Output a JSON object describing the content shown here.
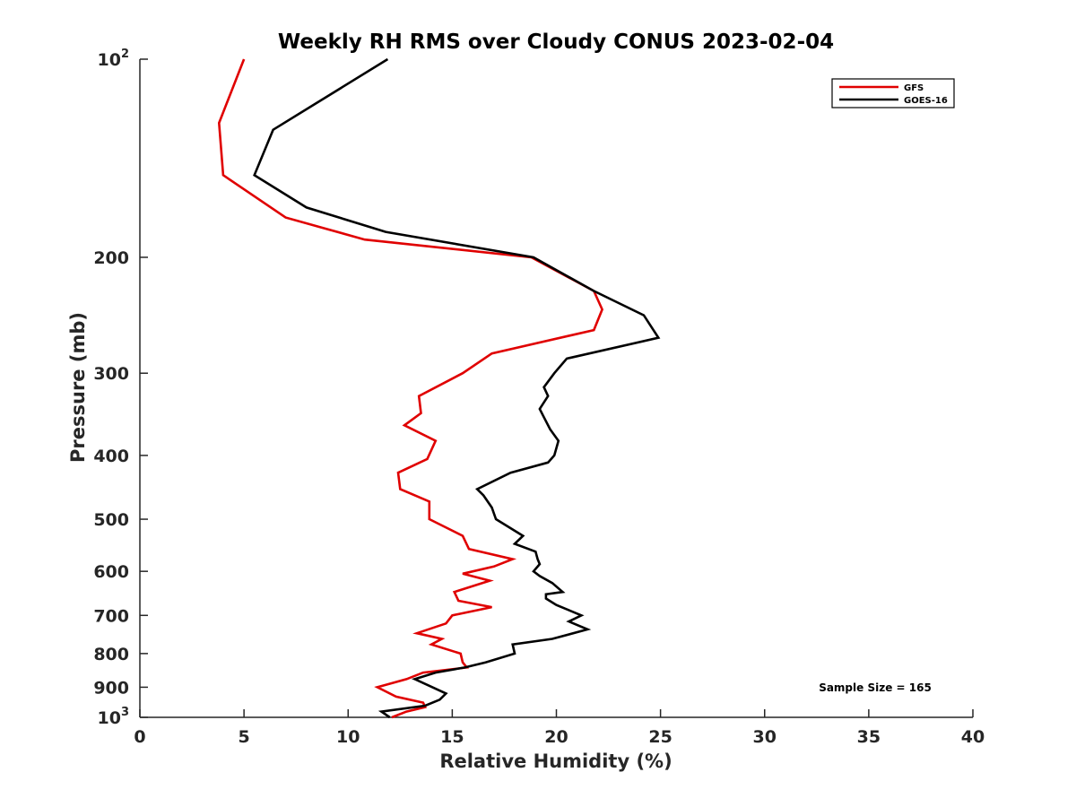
{
  "chart_data": {
    "type": "line",
    "title": "Weekly RH RMS over Cloudy CONUS 2023-02-04",
    "xlabel": "Relative Humidity (%)",
    "ylabel": "Pressure (mb)",
    "xlim": [
      0,
      40
    ],
    "ylim": [
      100,
      1000
    ],
    "yscale": "log",
    "yreversed": true,
    "x_ticks": [
      "0",
      "5",
      "10",
      "15",
      "20",
      "25",
      "30",
      "35",
      "40"
    ],
    "y_ticks": [
      {
        "value": 100,
        "base": "10",
        "exp": "2"
      },
      {
        "value": 200,
        "base": "200",
        "exp": ""
      },
      {
        "value": 300,
        "base": "300",
        "exp": ""
      },
      {
        "value": 400,
        "base": "400",
        "exp": ""
      },
      {
        "value": 500,
        "base": "500",
        "exp": ""
      },
      {
        "value": 600,
        "base": "600",
        "exp": ""
      },
      {
        "value": 700,
        "base": "700",
        "exp": ""
      },
      {
        "value": 800,
        "base": "800",
        "exp": ""
      },
      {
        "value": 900,
        "base": "900",
        "exp": ""
      },
      {
        "value": 1000,
        "base": "10",
        "exp": "3"
      }
    ],
    "grid": false,
    "legend_position": "top-right",
    "annotation": "Sample Size = 165",
    "series": [
      {
        "name": "GFS",
        "color": "#e00000",
        "points": [
          [
            5.0,
            100
          ],
          [
            3.8,
            125
          ],
          [
            4.0,
            150
          ],
          [
            7.0,
            174
          ],
          [
            10.8,
            188
          ],
          [
            18.8,
            200
          ],
          [
            21.8,
            225
          ],
          [
            22.2,
            240
          ],
          [
            21.8,
            258
          ],
          [
            16.9,
            280
          ],
          [
            15.5,
            300
          ],
          [
            13.4,
            325
          ],
          [
            13.5,
            345
          ],
          [
            12.7,
            360
          ],
          [
            14.2,
            380
          ],
          [
            13.8,
            405
          ],
          [
            12.4,
            425
          ],
          [
            12.5,
            450
          ],
          [
            13.9,
            470
          ],
          [
            13.9,
            500
          ],
          [
            15.5,
            530
          ],
          [
            15.8,
            555
          ],
          [
            17.9,
            575
          ],
          [
            17.0,
            590
          ],
          [
            15.5,
            605
          ],
          [
            16.8,
            620
          ],
          [
            15.1,
            645
          ],
          [
            15.3,
            665
          ],
          [
            16.9,
            680
          ],
          [
            15.0,
            700
          ],
          [
            14.7,
            720
          ],
          [
            13.3,
            745
          ],
          [
            14.5,
            760
          ],
          [
            14.0,
            775
          ],
          [
            15.4,
            800
          ],
          [
            15.5,
            825
          ],
          [
            15.7,
            840
          ],
          [
            13.6,
            855
          ],
          [
            12.8,
            875
          ],
          [
            11.4,
            900
          ],
          [
            12.3,
            930
          ],
          [
            13.6,
            950
          ],
          [
            13.7,
            965
          ],
          [
            12.8,
            980
          ],
          [
            12.1,
            1000
          ]
        ]
      },
      {
        "name": "GOES-16",
        "color": "#000000",
        "points": [
          [
            11.9,
            100
          ],
          [
            6.4,
            128
          ],
          [
            5.5,
            150
          ],
          [
            8.0,
            168
          ],
          [
            11.8,
            183
          ],
          [
            18.9,
            200
          ],
          [
            21.8,
            225
          ],
          [
            24.2,
            245
          ],
          [
            24.9,
            265
          ],
          [
            20.5,
            285
          ],
          [
            19.9,
            300
          ],
          [
            19.4,
            315
          ],
          [
            19.6,
            325
          ],
          [
            19.2,
            340
          ],
          [
            19.4,
            350
          ],
          [
            19.7,
            365
          ],
          [
            20.1,
            380
          ],
          [
            19.9,
            400
          ],
          [
            19.6,
            410
          ],
          [
            17.8,
            425
          ],
          [
            16.2,
            450
          ],
          [
            16.5,
            460
          ],
          [
            16.9,
            480
          ],
          [
            17.1,
            500
          ],
          [
            18.4,
            530
          ],
          [
            18.0,
            545
          ],
          [
            19.0,
            560
          ],
          [
            19.1,
            575
          ],
          [
            19.2,
            585
          ],
          [
            18.9,
            600
          ],
          [
            19.2,
            610
          ],
          [
            19.8,
            625
          ],
          [
            20.3,
            645
          ],
          [
            19.5,
            650
          ],
          [
            19.5,
            660
          ],
          [
            20.0,
            675
          ],
          [
            21.2,
            700
          ],
          [
            20.6,
            715
          ],
          [
            21.5,
            735
          ],
          [
            19.8,
            760
          ],
          [
            17.9,
            775
          ],
          [
            18.0,
            800
          ],
          [
            16.6,
            825
          ],
          [
            15.6,
            840
          ],
          [
            14.2,
            855
          ],
          [
            13.2,
            875
          ],
          [
            14.7,
            920
          ],
          [
            14.4,
            940
          ],
          [
            13.7,
            960
          ],
          [
            11.6,
            980
          ],
          [
            12.0,
            1000
          ]
        ]
      }
    ]
  }
}
